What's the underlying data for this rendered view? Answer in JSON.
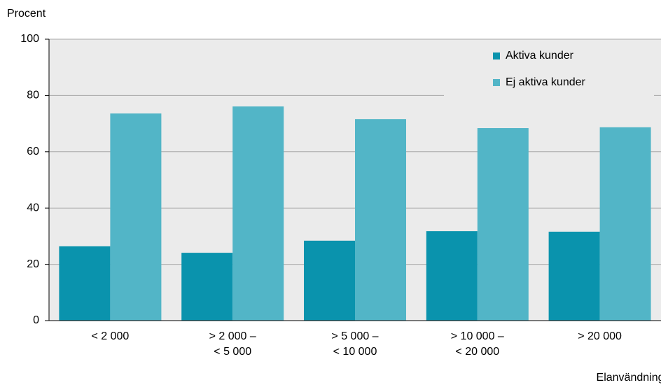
{
  "chart_data": {
    "type": "bar",
    "y_label": "Procent",
    "x_label": "Elanvändning",
    "categories": [
      "< 2 000",
      "> 2 000 –\n< 5 000",
      "> 5 000 –\n< 10 000",
      "> 10 000 –\n< 20 000",
      "> 20 000"
    ],
    "series": [
      {
        "name": "Aktiva kunder",
        "color": "#0a93ad",
        "values": [
          26.4,
          24.1,
          28.4,
          31.8,
          31.6
        ]
      },
      {
        "name": "Ej aktiva kunder",
        "color": "#52b5c7",
        "values": [
          73.6,
          76.1,
          71.6,
          68.4,
          68.7
        ]
      }
    ],
    "ylim": [
      0,
      100
    ],
    "yticks": [
      0,
      20,
      40,
      60,
      80,
      100
    ],
    "grid": true,
    "legend": "top-right"
  }
}
